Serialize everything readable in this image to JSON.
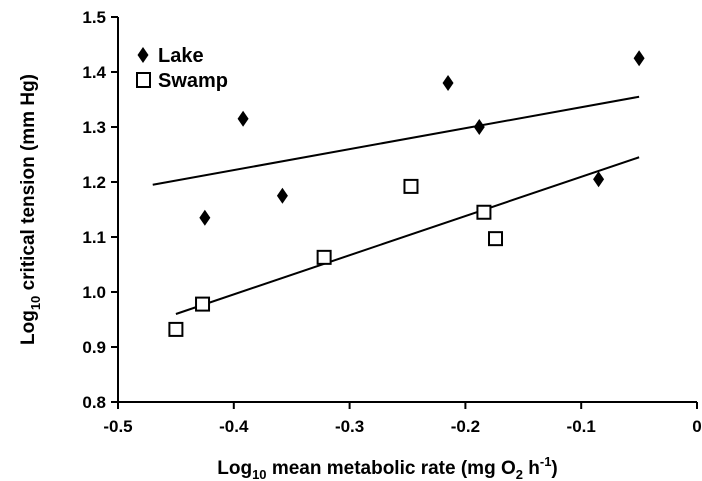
{
  "chart_data": {
    "type": "scatter",
    "xlabel_main": "Log",
    "xlabel_sub": "10",
    "xlabel_rest": " mean metabolic rate (mg O",
    "xlabel_o2sub": "2",
    "xlabel_h": " h",
    "xlabel_sup": "-1",
    "xlabel_close": ")",
    "ylabel_main": "Log",
    "ylabel_sub": "10",
    "ylabel_rest": " critical tension (mm Hg)",
    "xlim": [
      -0.5,
      0
    ],
    "ylim": [
      0.8,
      1.5
    ],
    "x_ticks": [
      "-0.5",
      "-0.4",
      "-0.3",
      "-0.2",
      "-0.1",
      "0"
    ],
    "x_tick_values": [
      -0.5,
      -0.4,
      -0.3,
      -0.2,
      -0.1,
      0
    ],
    "y_ticks": [
      "0.8",
      "0.9",
      "1.0",
      "1.1",
      "1.2",
      "1.3",
      "1.4",
      "1.5"
    ],
    "y_tick_values": [
      0.8,
      0.9,
      1.0,
      1.1,
      1.2,
      1.3,
      1.4,
      1.5
    ],
    "grid": false,
    "legend_position": "top-left",
    "series": [
      {
        "name": "Lake",
        "marker": "diamond-filled",
        "color": "#000000",
        "points": [
          {
            "x": -0.425,
            "y": 1.135
          },
          {
            "x": -0.392,
            "y": 1.315
          },
          {
            "x": -0.358,
            "y": 1.175
          },
          {
            "x": -0.215,
            "y": 1.38
          },
          {
            "x": -0.188,
            "y": 1.3
          },
          {
            "x": -0.085,
            "y": 1.205
          },
          {
            "x": -0.05,
            "y": 1.425
          }
        ],
        "fit_line": {
          "x": [
            -0.47,
            -0.05
          ],
          "y": [
            1.195,
            1.355
          ]
        }
      },
      {
        "name": "Swamp",
        "marker": "square-open",
        "color": "#000000",
        "points": [
          {
            "x": -0.45,
            "y": 0.932
          },
          {
            "x": -0.427,
            "y": 0.978
          },
          {
            "x": -0.322,
            "y": 1.063
          },
          {
            "x": -0.247,
            "y": 1.192
          },
          {
            "x": -0.184,
            "y": 1.145
          },
          {
            "x": -0.174,
            "y": 1.097
          }
        ],
        "fit_line": {
          "x": [
            -0.45,
            -0.05
          ],
          "y": [
            0.96,
            1.245
          ]
        }
      }
    ]
  }
}
